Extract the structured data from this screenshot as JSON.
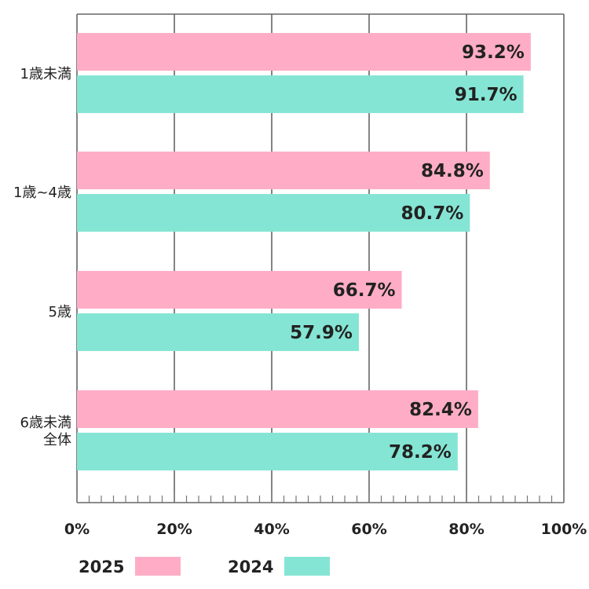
{
  "chart_data": {
    "type": "bar",
    "orientation": "horizontal",
    "categories": [
      [
        "1歳未満"
      ],
      [
        "1歳~4歳"
      ],
      [
        "5歳"
      ],
      [
        "6歳未満",
        "全体"
      ]
    ],
    "series": [
      {
        "name": "2025",
        "color": "#ffadc6",
        "values": [
          93.2,
          84.8,
          66.7,
          82.4
        ],
        "labels": [
          "93.2%",
          "84.8%",
          "66.7%",
          "82.4%"
        ]
      },
      {
        "name": "2024",
        "color": "#85e5d4",
        "values": [
          91.7,
          80.7,
          57.9,
          78.2
        ],
        "labels": [
          "91.7%",
          "80.7%",
          "57.9%",
          "78.2%"
        ]
      }
    ],
    "xlim": [
      0,
      100
    ],
    "xticks": [
      "0%",
      "20%",
      "40%",
      "60%",
      "80%",
      "100%"
    ],
    "grid": true,
    "legend_position": "bottom-left"
  }
}
